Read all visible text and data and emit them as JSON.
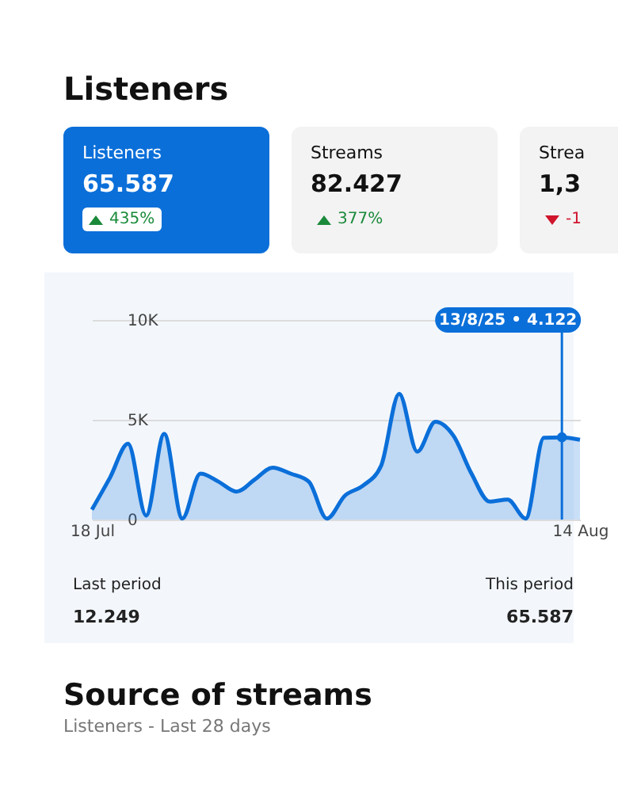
{
  "chart_data": [
    {
      "type": "other",
      "title": "Listeners",
      "annotations": [
        "Listeners",
        "65.587",
        "435%",
        "Streams",
        "82.427",
        "377%",
        "Strea",
        "1,3",
        "-1"
      ]
    },
    {
      "type": "area",
      "x": [
        "--07-18",
        "--07-19",
        "--07-20",
        "--07-21",
        "--07-22",
        "--07-23",
        "--07-24",
        "--07-25",
        "--07-26",
        "--07-27",
        "--07-28",
        "--07-29",
        "--07-30",
        "--07-31",
        "--08-01",
        "--08-02",
        "--08-03",
        "--08-04",
        "--08-05",
        "--08-06",
        "--08-07",
        "--08-08",
        "--08-09",
        "--08-10",
        "--08-11",
        "--08-12",
        "--08-13",
        "--08-14"
      ],
      "series": [
        {
          "color": "#0b6fd9",
          "values": [
            500,
            2100,
            3800,
            200,
            4300,
            50,
            2300,
            1900,
            1400,
            2000,
            2600,
            2300,
            1900,
            50,
            1200,
            1700,
            2700,
            6300,
            3400,
            4900,
            4200,
            2300,
            900,
            1000,
            50,
            4100,
            4122,
            4000
          ]
        }
      ],
      "xlim": [
        "--07-18",
        "--08-14"
      ],
      "xticks": [
        {
          "value": "--07-18",
          "label": "18 Jul"
        },
        {
          "value": "--08-14",
          "label": "14 Aug"
        }
      ],
      "ylim": [
        0,
        10000
      ],
      "yticks": [
        0,
        {
          "value": 5000,
          "label": "5K"
        },
        {
          "value": 10000,
          "label": "10K"
        }
      ],
      "grid": "y",
      "marker": "none",
      "ref_lines": [
        {
          "axis": "x",
          "value": "--08-13",
          "label": "13/8/25 • 4.122",
          "color": "#0b6fd9"
        }
      ],
      "annotations": [
        "Last period",
        "12.249",
        "This period",
        "65.587"
      ]
    },
    {
      "type": "other",
      "title": "Source of streams",
      "subtitle": "Listeners - Last 28 days"
    }
  ]
}
